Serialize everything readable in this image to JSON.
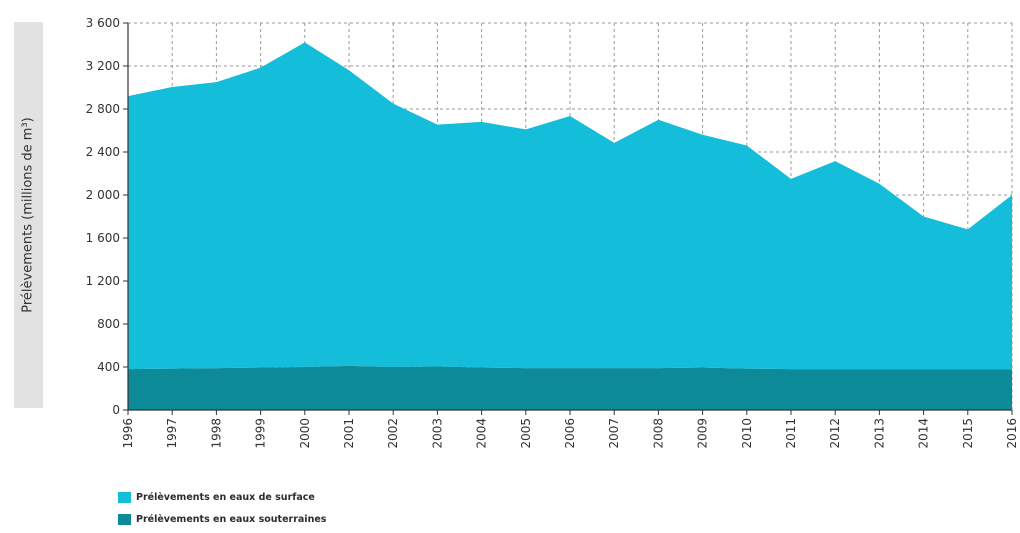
{
  "chart_data": {
    "type": "area",
    "stacked": true,
    "ylabel": "Prélèvements (millions de m³)",
    "ylim": [
      0,
      3600
    ],
    "y_ticks": [
      0,
      400,
      800,
      1200,
      1600,
      2000,
      2400,
      2800,
      3200,
      3600
    ],
    "y_tick_labels": [
      "0",
      "400",
      "800",
      "1 200",
      "1 600",
      "2 000",
      "2 400",
      "2 800",
      "3 200",
      "3 600"
    ],
    "grid": true,
    "legend_position": "bottom-left",
    "x": [
      "1996",
      "1997",
      "1998",
      "1999",
      "2000",
      "2001",
      "2002",
      "2003",
      "2004",
      "2005",
      "2006",
      "2007",
      "2008",
      "2009",
      "2010",
      "2011",
      "2012",
      "2013",
      "2014",
      "2015",
      "2016"
    ],
    "series": [
      {
        "name": "Prélèvements en eaux souterraines",
        "color": "#0d8a98",
        "values": [
          380,
          385,
          390,
          395,
          400,
          410,
          400,
          405,
          395,
          390,
          390,
          390,
          390,
          395,
          385,
          380,
          380,
          380,
          380,
          380,
          380
        ]
      },
      {
        "name": "Prélèvements en eaux de surface",
        "color": "#14bdd9",
        "values": [
          2540,
          2620,
          2660,
          2790,
          3020,
          2750,
          2450,
          2250,
          2285,
          2220,
          2345,
          2095,
          2310,
          2165,
          2075,
          1770,
          1935,
          1725,
          1420,
          1300,
          1620
        ]
      }
    ]
  }
}
